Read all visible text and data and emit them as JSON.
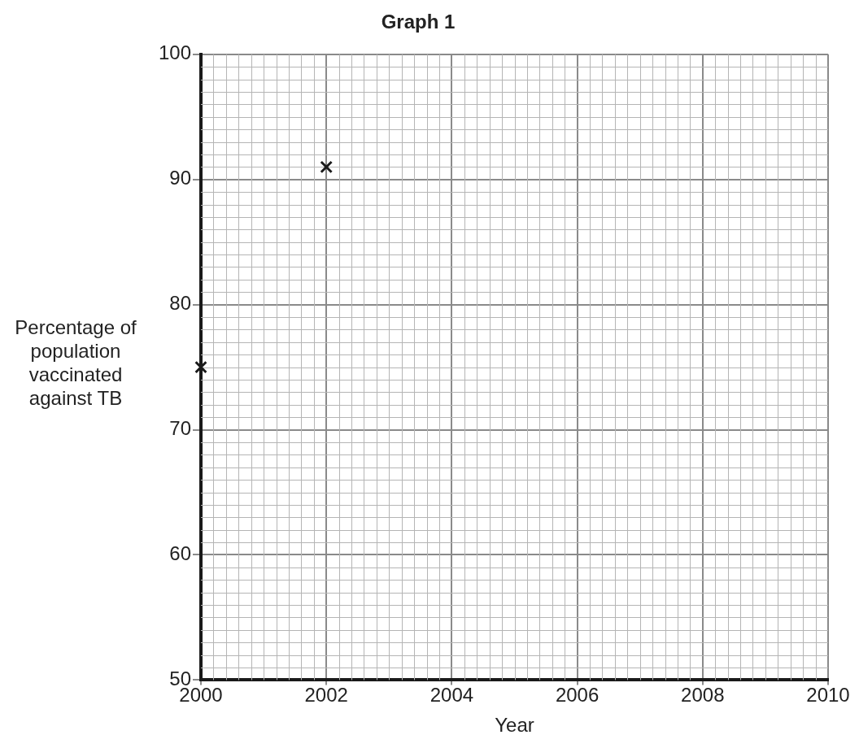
{
  "chart_data": {
    "type": "scatter",
    "title": "Graph 1",
    "xlabel": "Year",
    "ylabel": "Percentage of population vaccinated against TB",
    "x": [
      2000,
      2002
    ],
    "series": [
      {
        "color": "#1a1a1a",
        "values": [
          75,
          91
        ]
      }
    ],
    "xlim": [
      2000,
      2010
    ],
    "xticks": [
      2000,
      2002,
      2004,
      2006,
      2008,
      2010
    ],
    "ylim": [
      50,
      100
    ],
    "yticks": [
      50,
      60,
      70,
      80,
      90,
      100
    ],
    "grid": true,
    "marker": "cross",
    "legend": false
  }
}
